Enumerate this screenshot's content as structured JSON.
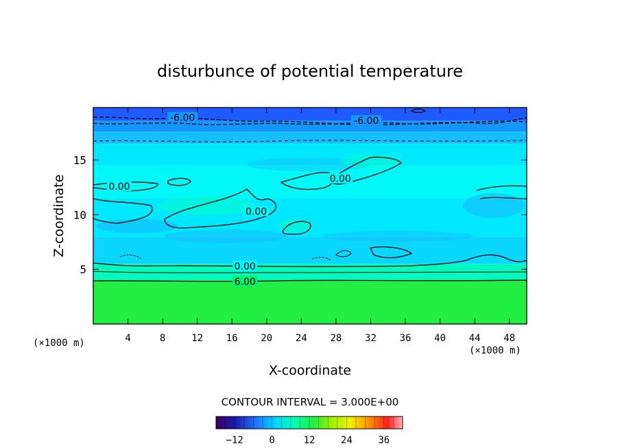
{
  "chart_data": {
    "type": "contour",
    "title": "disturbunce of potential temperature",
    "xlabel": "X-coordinate",
    "ylabel": "Z-coordinate",
    "x_unit_label": "(×1000 m)",
    "y_unit_label": "(×1000 m)",
    "x_ticks": [
      4,
      8,
      12,
      16,
      20,
      24,
      28,
      32,
      36,
      40,
      44,
      48
    ],
    "y_ticks": [
      5,
      10,
      15
    ],
    "xlim": [
      0,
      50
    ],
    "ylim": [
      0,
      19.8
    ],
    "contour_interval_text": "CONTOUR INTERVAL = 3.000E+00",
    "contour_labels": [
      {
        "text": "-6.00",
        "x": 10.3,
        "z": 18.9
      },
      {
        "text": "-6.00",
        "x": 31.5,
        "z": 18.6
      },
      {
        "text": "0.00",
        "x": 3.0,
        "z": 12.6
      },
      {
        "text": "0.00",
        "x": 18.8,
        "z": 10.3
      },
      {
        "text": "0.00",
        "x": 28.5,
        "z": 13.3
      },
      {
        "text": "0.00",
        "x": 17.5,
        "z": 5.3
      },
      {
        "text": "6.00",
        "x": 17.5,
        "z": 3.9
      }
    ],
    "field_bands": [
      {
        "z_from": 18.6,
        "z_to": 19.8,
        "value": -9
      },
      {
        "z_from": 17.6,
        "z_to": 18.6,
        "value": -6
      },
      {
        "z_from": 16.5,
        "z_to": 17.6,
        "value": -4
      },
      {
        "z_from": 14.5,
        "z_to": 16.5,
        "value": -1
      },
      {
        "z_from": 11.5,
        "z_to": 14.5,
        "value": 0
      },
      {
        "z_from": 8.0,
        "z_to": 11.5,
        "value": -1
      },
      {
        "z_from": 5.5,
        "z_to": 8.0,
        "value": -2
      },
      {
        "z_from": 4.0,
        "z_to": 5.5,
        "value": 3
      },
      {
        "z_from": 0.0,
        "z_to": 4.0,
        "value": 9
      }
    ],
    "colorbar": {
      "min": -18,
      "max": 42,
      "tick_values": [
        -12,
        0,
        12,
        24,
        36
      ],
      "tick_labels": [
        "−12",
        "0",
        "12",
        "24",
        "36"
      ]
    },
    "grid": false
  }
}
